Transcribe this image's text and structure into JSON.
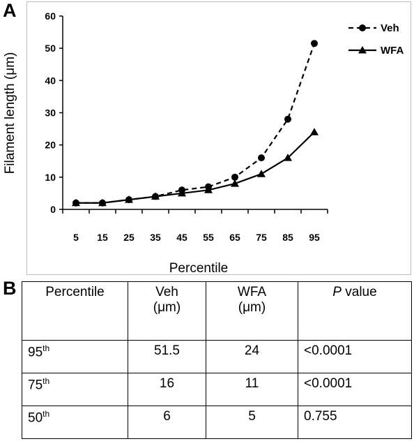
{
  "panels": {
    "a": "A",
    "b": "B"
  },
  "chart_data": {
    "type": "line",
    "x": [
      5,
      15,
      25,
      35,
      45,
      55,
      65,
      75,
      85,
      95
    ],
    "xlabel": "Percentile",
    "ylabel": "Filament length (μm)",
    "ylim": [
      0,
      60
    ],
    "yticks": [
      0,
      10,
      20,
      30,
      40,
      50,
      60
    ],
    "legend": "top-right",
    "grid": false,
    "series": [
      {
        "name": "Veh",
        "style": "dashed",
        "marker": "circle",
        "values": [
          2,
          2,
          3,
          4,
          6,
          7,
          10,
          16,
          28,
          51.5
        ]
      },
      {
        "name": "WFA",
        "style": "solid",
        "marker": "triangle",
        "values": [
          2,
          2,
          3,
          4,
          5,
          6,
          8,
          11,
          16,
          24
        ]
      }
    ]
  },
  "table": {
    "headers": {
      "percentile": "Percentile",
      "veh": "Veh",
      "veh_unit": "(μm)",
      "wfa": "WFA",
      "wfa_unit": "(μm)",
      "p_italic": "P",
      "p_rest": " value"
    },
    "rows": [
      {
        "pct": "95",
        "sup": "th",
        "veh": "51.5",
        "wfa": "24",
        "p": "<0.0001"
      },
      {
        "pct": "75",
        "sup": "th",
        "veh": "16",
        "wfa": "11",
        "p": "<0.0001"
      },
      {
        "pct": "50",
        "sup": "th",
        "veh": "6",
        "wfa": "5",
        "p": "0.755"
      }
    ]
  }
}
